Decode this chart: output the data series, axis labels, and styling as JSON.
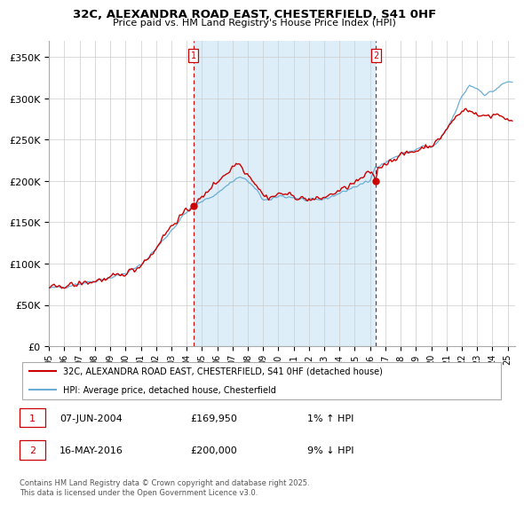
{
  "title": "32C, ALEXANDRA ROAD EAST, CHESTERFIELD, S41 0HF",
  "subtitle": "Price paid vs. HM Land Registry's House Price Index (HPI)",
  "ylim": [
    0,
    370000
  ],
  "yticks": [
    0,
    50000,
    100000,
    150000,
    200000,
    250000,
    300000,
    350000
  ],
  "ytick_labels": [
    "£0",
    "£50K",
    "£100K",
    "£150K",
    "£200K",
    "£250K",
    "£300K",
    "£350K"
  ],
  "xlim_start": 1995.0,
  "xlim_end": 2025.5,
  "hpi_color": "#6aaed6",
  "hpi_fill_color": "#ddeef8",
  "price_color": "#cc0000",
  "transaction1_date": "07-JUN-2004",
  "transaction1_price": 169950,
  "transaction1_hpi_rel": "1% ↑ HPI",
  "transaction2_date": "16-MAY-2016",
  "transaction2_price": 200000,
  "transaction2_hpi_rel": "9% ↓ HPI",
  "legend_label_price": "32C, ALEXANDRA ROAD EAST, CHESTERFIELD, S41 0HF (detached house)",
  "legend_label_hpi": "HPI: Average price, detached house, Chesterfield",
  "footnote": "Contains HM Land Registry data © Crown copyright and database right 2025.\nThis data is licensed under the Open Government Licence v3.0.",
  "marker1_x": 2004.44,
  "marker1_y": 169950,
  "marker2_x": 2016.37,
  "marker2_y": 200000,
  "xtick_labels": [
    "95",
    "96",
    "97",
    "98",
    "99",
    "00",
    "01",
    "02",
    "03",
    "04",
    "05",
    "06",
    "07",
    "08",
    "09",
    "10",
    "11",
    "12",
    "13",
    "14",
    "15",
    "16",
    "17",
    "18",
    "19",
    "20",
    "21",
    "22",
    "23",
    "24",
    "25"
  ]
}
